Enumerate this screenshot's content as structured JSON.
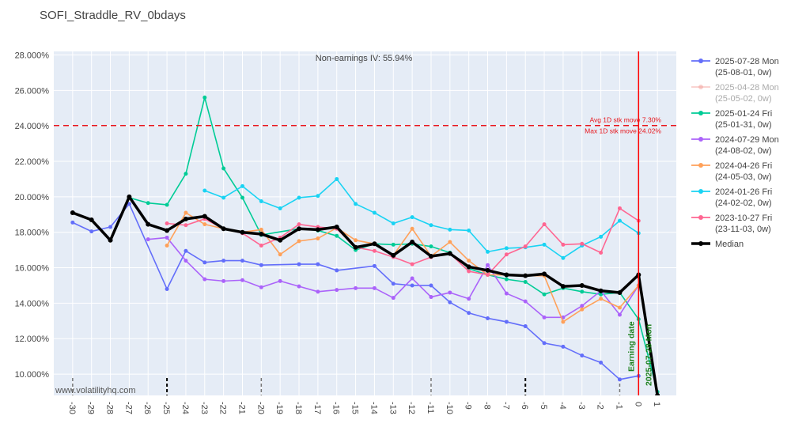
{
  "chart_data": {
    "type": "line",
    "title": "SOFI_Straddle_RV_0bdays",
    "watermark": "www.volatilityhq.com",
    "annotation_iv": "Non-earnings IV: 55.94%",
    "avg_move_label": "Avg 1D stk move 7.30%",
    "max_move_label": "Max 1D stk move 24.02%",
    "hline_value": 24.02,
    "earning_label": "Earning date",
    "earning_date_label": "2025-07-28 Mon",
    "vline_x": 0,
    "xlim": [
      -31,
      2
    ],
    "ylim": [
      8.8,
      28.2
    ],
    "y_ticks": [
      10,
      12,
      14,
      16,
      18,
      20,
      22,
      24,
      26,
      28
    ],
    "y_tick_labels": [
      "10.000%",
      "12.000%",
      "14.000%",
      "16.000%",
      "18.000%",
      "20.000%",
      "22.000%",
      "24.000%",
      "26.000%",
      "28.000%"
    ],
    "x_ticks": [
      -30,
      -29,
      -28,
      -27,
      -26,
      -25,
      -24,
      -23,
      -22,
      -21,
      -20,
      -19,
      -18,
      -17,
      -16,
      -15,
      -14,
      -13,
      -12,
      -11,
      -10,
      -9,
      -8,
      -7,
      -6,
      -5,
      -4,
      -3,
      -2,
      -1,
      0,
      1
    ],
    "series": [
      {
        "name": "2025-07-28 Mon (25-08-01, 0w)",
        "legend_line1": "2025-07-28 Mon",
        "legend_line2": "(25-08-01, 0w)",
        "color": "#636efa",
        "faded": false,
        "x": [
          -30,
          -29,
          -28,
          -27,
          -25,
          -24,
          -23,
          -22,
          -21,
          -20,
          -18,
          -17,
          -16,
          -14,
          -13,
          -12,
          -11,
          -10,
          -9,
          -8,
          -7,
          -6,
          -5,
          -4,
          -3,
          -2,
          -1,
          0
        ],
        "y": [
          18.55,
          18.05,
          18.3,
          19.6,
          14.8,
          16.95,
          16.3,
          16.4,
          16.4,
          16.15,
          16.2,
          16.2,
          15.85,
          16.1,
          15.1,
          15.0,
          15.0,
          14.05,
          13.45,
          13.15,
          12.95,
          12.7,
          11.75,
          11.55,
          11.05,
          10.65,
          9.7,
          9.9
        ]
      },
      {
        "name": "2025-04-28 Mon (25-05-02, 0w)",
        "legend_line1": "2025-04-28 Mon",
        "legend_line2": "(25-05-02, 0w)",
        "color": "#f4a6a0",
        "faded": true,
        "x": [],
        "y": []
      },
      {
        "name": "2025-01-24 Fri (25-01-31, 0w)",
        "legend_line1": "2025-01-24 Fri",
        "legend_line2": "(25-01-31, 0w)",
        "color": "#00cc96",
        "faded": false,
        "x": [
          -27,
          -26,
          -25,
          -24,
          -23,
          -22,
          -21,
          -20,
          -18,
          -17,
          -16,
          -15,
          -14,
          -13,
          -12,
          -11,
          -10,
          -9,
          -8,
          -7,
          -6,
          -5,
          -4,
          -3,
          -2,
          -1,
          0,
          1
        ],
        "y": [
          19.95,
          19.65,
          19.55,
          21.3,
          25.6,
          21.6,
          19.95,
          17.85,
          18.2,
          18.1,
          17.8,
          17.0,
          17.35,
          17.3,
          17.35,
          17.2,
          16.85,
          15.95,
          15.6,
          15.35,
          15.2,
          14.5,
          14.85,
          14.65,
          14.5,
          14.6,
          13.1,
          9.0
        ]
      },
      {
        "name": "2024-07-29 Mon (24-08-02, 0w)",
        "legend_line1": "2024-07-29 Mon",
        "legend_line2": "(24-08-02, 0w)",
        "color": "#ab63fa",
        "faded": false,
        "x": [
          -26,
          -25,
          -24,
          -23,
          -22,
          -21,
          -20,
          -19,
          -18,
          -17,
          -16,
          -15,
          -14,
          -13,
          -12,
          -11,
          -10,
          -9,
          -8,
          -7,
          -6,
          -5,
          -4,
          -3,
          -2,
          -1,
          0
        ],
        "y": [
          17.6,
          17.7,
          16.4,
          15.35,
          15.25,
          15.3,
          14.9,
          15.25,
          14.95,
          14.65,
          14.75,
          14.85,
          14.85,
          14.3,
          15.4,
          14.35,
          14.6,
          14.25,
          16.15,
          14.55,
          14.1,
          13.2,
          13.2,
          13.85,
          14.7,
          13.35,
          15.0
        ]
      },
      {
        "name": "2024-04-26 Fri (24-05-03, 0w)",
        "legend_line1": "2024-04-26 Fri",
        "legend_line2": "(24-05-03, 0w)",
        "color": "#ffa15a",
        "faded": false,
        "x": [
          -25,
          -24,
          -23,
          -22,
          -21,
          -20,
          -19,
          -18,
          -17,
          -16,
          -15,
          -14,
          -13,
          -12,
          -11,
          -10,
          -9,
          -8,
          -7,
          -6,
          -5,
          -4,
          -3,
          -2,
          -1,
          0
        ],
        "y": [
          17.25,
          19.1,
          18.45,
          18.2,
          18.0,
          18.15,
          16.75,
          17.5,
          17.65,
          18.25,
          17.55,
          17.35,
          16.7,
          18.2,
          16.65,
          17.45,
          16.4,
          15.6,
          15.6,
          15.55,
          15.55,
          12.95,
          13.65,
          14.25,
          13.75,
          15.0
        ]
      },
      {
        "name": "2024-01-26 Fri (24-02-02, 0w)",
        "legend_line1": "2024-01-26 Fri",
        "legend_line2": "(24-02-02, 0w)",
        "color": "#19d3f3",
        "faded": false,
        "x": [
          -23,
          -22,
          -21,
          -20,
          -19,
          -18,
          -17,
          -16,
          -15,
          -14,
          -13,
          -12,
          -11,
          -10,
          -9,
          -8,
          -7,
          -6,
          -5,
          -4,
          -3,
          -2,
          -1,
          0
        ],
        "y": [
          20.35,
          19.95,
          20.6,
          19.75,
          19.35,
          19.95,
          20.05,
          21.0,
          19.6,
          19.1,
          18.5,
          18.85,
          18.4,
          18.15,
          18.1,
          16.9,
          17.1,
          17.15,
          17.3,
          16.55,
          17.25,
          17.75,
          18.65,
          17.95
        ]
      },
      {
        "name": "2023-10-27 Fri (23-11-03, 0w)",
        "legend_line1": "2023-10-27 Fri",
        "legend_line2": "(23-11-03, 0w)",
        "color": "#ff6692",
        "faded": false,
        "x": [
          -25,
          -24,
          -23,
          -22,
          -21,
          -20,
          -19,
          -18,
          -17,
          -16,
          -15,
          -14,
          -13,
          -12,
          -11,
          -10,
          -9,
          -8,
          -7,
          -6,
          -5,
          -4,
          -3,
          -2,
          -1,
          0
        ],
        "y": [
          18.5,
          18.4,
          18.75,
          18.2,
          17.95,
          17.25,
          17.7,
          18.45,
          18.3,
          18.2,
          17.15,
          16.95,
          16.6,
          16.2,
          16.6,
          16.8,
          15.8,
          15.6,
          16.75,
          17.2,
          18.45,
          17.3,
          17.35,
          16.85,
          19.35,
          18.65
        ]
      },
      {
        "name": "Median",
        "legend_line1": "Median",
        "legend_line2": "",
        "color": "#000000",
        "faded": false,
        "bold": true,
        "x": [
          -30,
          -29,
          -28,
          -27,
          -26,
          -25,
          -24,
          -23,
          -22,
          -21,
          -20,
          -19,
          -18,
          -17,
          -16,
          -15,
          -14,
          -13,
          -12,
          -11,
          -10,
          -9,
          -8,
          -7,
          -6,
          -5,
          -4,
          -3,
          -2,
          -1,
          0,
          1
        ],
        "y": [
          19.1,
          18.7,
          17.55,
          20.0,
          18.45,
          18.1,
          18.75,
          18.9,
          18.2,
          18.0,
          17.9,
          17.55,
          18.2,
          18.15,
          18.3,
          17.15,
          17.35,
          16.7,
          17.45,
          16.65,
          16.8,
          16.05,
          15.85,
          15.6,
          15.55,
          15.65,
          14.95,
          15.0,
          14.7,
          14.6,
          15.6,
          8.8
        ]
      }
    ],
    "x_week_markers": [
      -30,
      -25,
      -20,
      -11,
      -6,
      -1
    ]
  }
}
